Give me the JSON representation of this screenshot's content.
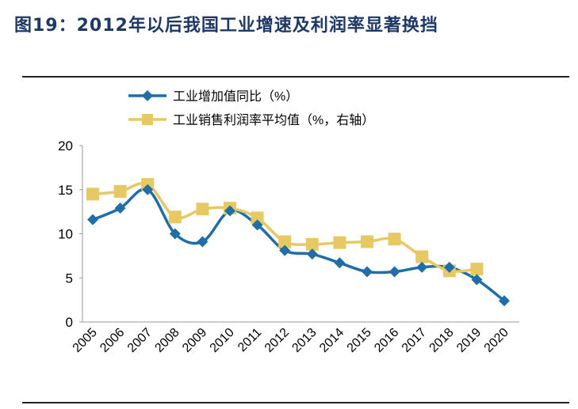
{
  "title": "图19：2012年以后我国工业增速及利润率显著换挡",
  "chart_data": {
    "type": "line",
    "title": "图19：2012年以后我国工业增速及利润率显著换挡",
    "categories": [
      "2005",
      "2006",
      "2007",
      "2008",
      "2009",
      "2010",
      "2011",
      "2012",
      "2013",
      "2014",
      "2015",
      "2016",
      "2017",
      "2018",
      "2019",
      "2020"
    ],
    "ylim": [
      0,
      20
    ],
    "yticks": [
      0,
      5,
      10,
      15,
      20
    ],
    "grid": false,
    "legend_position": "top-left",
    "series": [
      {
        "name": "工业增加值同比（%）",
        "color": "#1f6ea8",
        "marker": "diamond",
        "axis": "left",
        "values": [
          11.6,
          12.9,
          15.0,
          10.0,
          9.1,
          12.6,
          11.0,
          8.1,
          7.7,
          6.7,
          5.7,
          5.7,
          6.2,
          6.2,
          4.8,
          2.4
        ]
      },
      {
        "name": "工业销售利润率平均值（%，右轴）",
        "color": "#e6c865",
        "marker": "square",
        "axis": "right",
        "values": [
          14.5,
          14.8,
          15.6,
          11.9,
          12.8,
          12.9,
          11.8,
          9.1,
          8.8,
          9.0,
          9.1,
          9.4,
          7.4,
          5.8,
          6.0,
          null
        ]
      }
    ]
  }
}
